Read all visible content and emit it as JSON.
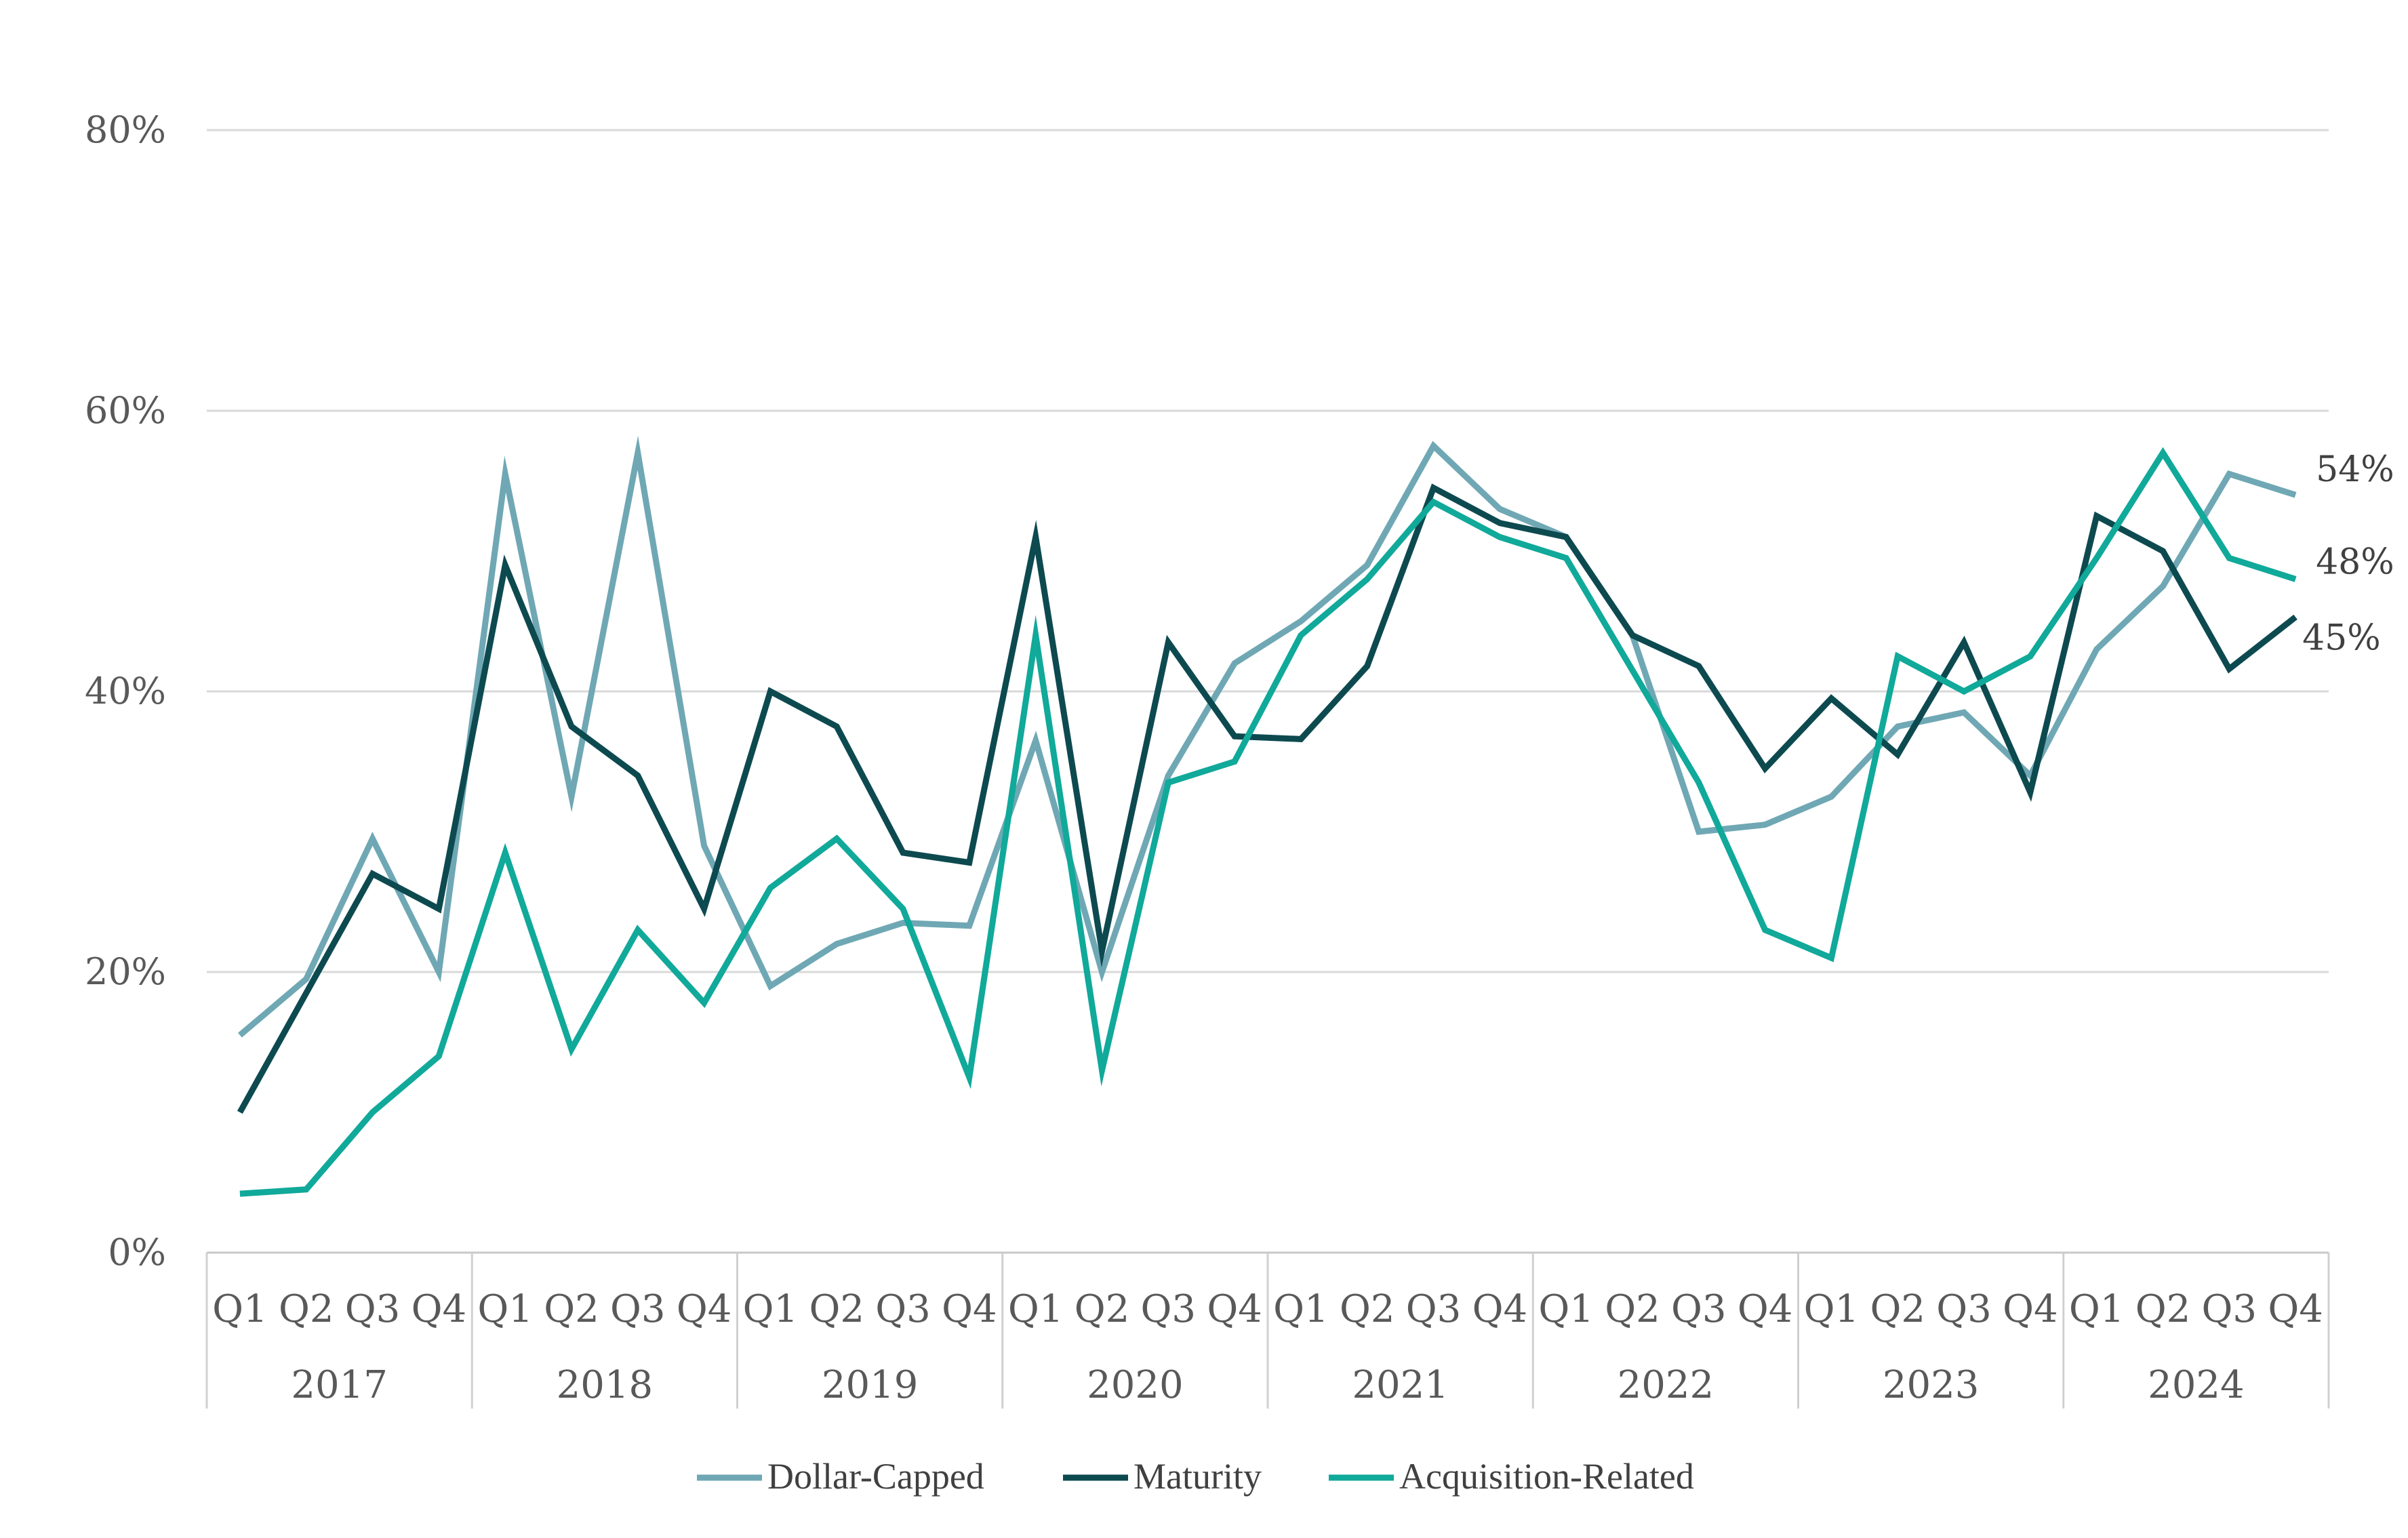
{
  "chart_data": {
    "type": "line",
    "title": "",
    "xlabel": "",
    "ylabel": "",
    "ylim": [
      0,
      80
    ],
    "yticks": [
      "0%",
      "20%",
      "40%",
      "60%",
      "80%"
    ],
    "grid": "horizontal",
    "legend": "bottom",
    "quarters": [
      "Q1",
      "Q2",
      "Q3",
      "Q4"
    ],
    "years": [
      "2017",
      "2018",
      "2019",
      "2020",
      "2021",
      "2022",
      "2023",
      "2024"
    ],
    "series": [
      {
        "name": "Dollar-Capped",
        "color": "#6fa8b4",
        "end_label": "54%",
        "values": [
          15.5,
          19.5,
          29.5,
          20.0,
          55.5,
          32.5,
          57.0,
          29.0,
          19.0,
          22.0,
          23.5,
          23.3,
          36.5,
          20.0,
          34.0,
          42.0,
          45.0,
          49.0,
          57.5,
          53.0,
          51.0,
          44.0,
          30.0,
          30.5,
          32.5,
          37.5,
          38.5,
          34.0,
          43.0,
          47.5,
          55.5,
          54.0
        ]
      },
      {
        "name": "Maturity",
        "color": "#0d4a50",
        "end_label": "45%",
        "values": [
          10.0,
          18.5,
          27.0,
          24.5,
          49.0,
          37.5,
          34.0,
          24.5,
          40.0,
          37.5,
          28.5,
          27.8,
          51.0,
          21.5,
          43.5,
          36.8,
          36.6,
          41.8,
          54.5,
          52.0,
          51.0,
          44.0,
          41.8,
          34.5,
          39.5,
          35.5,
          43.5,
          32.8,
          52.5,
          50.0,
          41.6,
          45.3
        ]
      },
      {
        "name": "Acquisition-Related",
        "color": "#10a99a",
        "end_label": "48%",
        "values": [
          4.2,
          4.5,
          10.0,
          14.0,
          28.5,
          14.5,
          23.0,
          17.8,
          26.0,
          29.5,
          24.5,
          12.5,
          44.0,
          13.0,
          33.5,
          35.0,
          44.0,
          48.0,
          53.5,
          51.0,
          49.5,
          41.5,
          33.5,
          23.0,
          21.0,
          42.5,
          40.0,
          42.5,
          49.5,
          57.0,
          49.5,
          48.0
        ]
      }
    ]
  }
}
